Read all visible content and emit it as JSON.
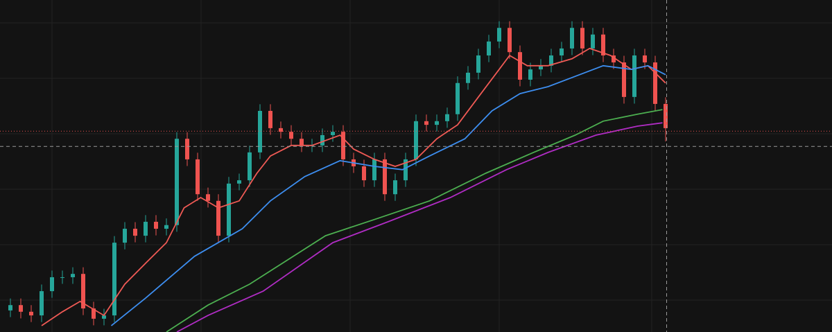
{
  "chart_data": {
    "type": "candlestick",
    "xlim": [
      -1,
      79
    ],
    "ylim": [
      0,
      100
    ],
    "up_color": "#26a69a",
    "down_color": "#ef5350",
    "open": [
      6.5,
      8.1,
      6.1,
      5.0,
      12.3,
      16.5,
      16.5,
      17.5,
      7.1,
      4.0,
      5.0,
      26.9,
      31.1,
      29.0,
      33.2,
      31.1,
      32.2,
      58.2,
      52.0,
      41.5,
      39.5,
      29.0,
      44.7,
      45.7,
      54.1,
      66.6,
      61.4,
      60.3,
      58.2,
      56.2,
      56.2,
      59.3,
      60.3,
      52.0,
      49.9,
      45.7,
      52.0,
      41.5,
      45.7,
      52.0,
      63.5,
      62.4,
      63.5,
      65.6,
      75.0,
      78.1,
      83.3,
      87.5,
      91.6,
      84.3,
      76.0,
      79.1,
      80.2,
      83.3,
      85.4,
      91.6,
      85.4,
      89.6,
      83.3,
      81.2,
      70.8,
      83.3,
      81.2,
      68.7
    ],
    "high": [
      10.1,
      10.1,
      8.1,
      14.3,
      18.5,
      18.5,
      19.5,
      19.5,
      9.1,
      7.0,
      28.9,
      33.1,
      33.1,
      35.2,
      35.2,
      34.2,
      60.2,
      60.2,
      54.0,
      43.5,
      41.5,
      46.7,
      47.7,
      56.1,
      68.6,
      68.6,
      63.4,
      62.3,
      60.2,
      58.2,
      61.3,
      62.3,
      62.3,
      54.0,
      51.9,
      54.0,
      54.0,
      47.7,
      54.0,
      65.5,
      65.5,
      65.5,
      67.6,
      77.0,
      80.1,
      85.3,
      89.5,
      93.6,
      93.6,
      86.3,
      81.1,
      82.2,
      85.3,
      87.4,
      93.6,
      93.6,
      91.6,
      91.6,
      85.3,
      83.2,
      85.3,
      85.3,
      83.2,
      70.7
    ],
    "low": [
      4.5,
      4.1,
      3.0,
      3.0,
      10.3,
      14.5,
      14.5,
      5.1,
      2.0,
      2.0,
      3.0,
      24.9,
      27.0,
      27.0,
      29.1,
      29.1,
      30.2,
      50.0,
      39.5,
      37.5,
      27.0,
      27.0,
      42.7,
      43.7,
      52.1,
      59.4,
      58.3,
      56.2,
      54.2,
      54.2,
      54.2,
      57.3,
      50.0,
      47.9,
      43.7,
      43.7,
      39.5,
      39.5,
      43.7,
      50.0,
      60.4,
      60.4,
      61.5,
      63.6,
      73.0,
      76.1,
      81.3,
      85.5,
      82.3,
      74.0,
      74.0,
      77.1,
      78.2,
      81.3,
      83.4,
      83.4,
      83.4,
      81.3,
      79.2,
      68.8,
      68.8,
      79.2,
      66.7,
      57.4
    ],
    "close": [
      8.1,
      6.1,
      5.0,
      12.3,
      16.5,
      16.5,
      17.5,
      7.1,
      4.0,
      5.0,
      26.9,
      31.1,
      29.0,
      33.2,
      31.1,
      32.2,
      58.2,
      52.0,
      41.5,
      39.5,
      29.0,
      44.7,
      45.7,
      54.1,
      66.6,
      61.4,
      60.3,
      58.2,
      56.2,
      56.2,
      59.3,
      60.3,
      52.0,
      49.9,
      45.7,
      52.0,
      41.5,
      45.7,
      52.0,
      63.5,
      62.4,
      63.5,
      65.6,
      75.0,
      78.1,
      83.3,
      87.5,
      91.6,
      84.3,
      76.0,
      79.1,
      80.2,
      83.3,
      85.4,
      91.6,
      85.4,
      89.6,
      83.3,
      81.2,
      70.8,
      83.3,
      81.2,
      68.7,
      61.4
    ],
    "series": [
      {
        "color": "#f05a55",
        "x": [
          3,
          5,
          6.7,
          9,
          11,
          13,
          15,
          16.7,
          18.3,
          20,
          22,
          23.7,
          25,
          27,
          29,
          31.7,
          33,
          35,
          37,
          39,
          41,
          43,
          45,
          47,
          48,
          49.7,
          51.7,
          54,
          55.7,
          57.7,
          59.7,
          61.3,
          63
        ],
        "values": [
          1.9,
          6.1,
          9.2,
          5.0,
          14.4,
          20.7,
          26.9,
          37.4,
          40.5,
          37.4,
          39.5,
          47.8,
          53.0,
          56.2,
          56.2,
          59.3,
          55.1,
          52.0,
          49.9,
          52.0,
          58.2,
          62.4,
          70.8,
          79.1,
          83.3,
          80.2,
          80.2,
          82.3,
          85.4,
          83.3,
          79.1,
          80.2,
          75.0
        ]
      },
      {
        "color": "#3d8ef0",
        "x": [
          9.7,
          13,
          17.7,
          22.3,
          25,
          28.3,
          31.7,
          35,
          37.7,
          40.3,
          43.7,
          46.3,
          49,
          51.7,
          54.3,
          57,
          59.7,
          61.3,
          63
        ],
        "values": [
          1.9,
          10.2,
          22.8,
          31.1,
          39.5,
          46.8,
          51.6,
          49.9,
          48.9,
          53.0,
          58.2,
          66.6,
          71.8,
          73.9,
          77.0,
          80.2,
          79.1,
          80.2,
          77.5
        ]
      },
      {
        "color": "#4caf50",
        "x": [
          15,
          19,
          23,
          30.3,
          35.3,
          40.3,
          45.7,
          50.3,
          54.3,
          57,
          60.3,
          62.7
        ],
        "values": [
          0,
          8.1,
          14.4,
          29.0,
          34.2,
          39.5,
          47.8,
          54.1,
          59.3,
          63.5,
          65.6,
          67.0
        ]
      },
      {
        "color": "#b02cc4",
        "x": [
          16,
          19,
          24.3,
          31,
          36.3,
          42.3,
          47.7,
          51.7,
          56.3,
          60.3,
          62.7
        ],
        "values": [
          0,
          5.0,
          12.3,
          26.9,
          33.2,
          40.5,
          48.9,
          54.1,
          59.3,
          62.0,
          63.0
        ]
      }
    ],
    "price_line": 60.5,
    "crosshair": {
      "x": 63.1,
      "y": 55.9
    }
  }
}
